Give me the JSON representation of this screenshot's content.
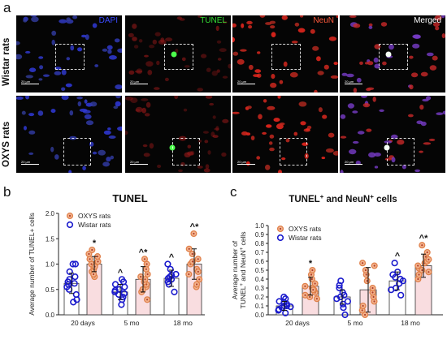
{
  "panel_letters": {
    "a": "a",
    "b": "b",
    "c": "c"
  },
  "rows": [
    {
      "label": "Wistar rats"
    },
    {
      "label": "OXYS rats"
    }
  ],
  "channels": [
    {
      "name": "DAPI",
      "color": "#3b4bff"
    },
    {
      "name": "TUNEL",
      "color": "#35e035"
    },
    {
      "name": "NeuN",
      "color": "#ff5a3c"
    },
    {
      "name": "Merged",
      "color": "#ffffff"
    }
  ],
  "scale_bar_label": "20 µm",
  "colors": {
    "wistar": "#1a1acc",
    "oxys_point": "#e0804a",
    "oxys_bar_fill": "#f9dde0",
    "axis": "#222222"
  },
  "chart_data": [
    {
      "type": "bar",
      "title": "TUNEL",
      "ylabel": "Average number of TUNEL+ cells",
      "ylim": [
        0,
        2.0
      ],
      "yticks": [
        "0.0",
        "0.5",
        "1.0",
        "1.5",
        "2.0"
      ],
      "categories": [
        "20 days",
        "5 mo",
        "18 mo"
      ],
      "legend": [
        "OXYS rats",
        "Wistar rats"
      ],
      "series": [
        {
          "name": "Wistar rats",
          "values": [
            0.62,
            0.45,
            0.72
          ],
          "err": [
            0.2,
            0.15,
            0.16
          ],
          "points": [
            [
              0.25,
              0.4,
              0.5,
              0.55,
              0.6,
              0.62,
              0.65,
              0.7,
              0.75,
              0.85,
              1.0,
              1.0,
              0.3
            ],
            [
              0.2,
              0.3,
              0.35,
              0.4,
              0.42,
              0.45,
              0.48,
              0.5,
              0.55,
              0.6,
              0.65,
              0.7
            ],
            [
              0.45,
              0.6,
              0.65,
              0.7,
              0.72,
              0.75,
              0.78,
              0.8,
              0.9,
              1.0
            ]
          ]
        },
        {
          "name": "OXYS rats",
          "values": [
            1.0,
            0.7,
            1.0
          ],
          "err": [
            0.15,
            0.25,
            0.3
          ],
          "points": [
            [
              0.75,
              0.85,
              0.9,
              0.95,
              1.0,
              1.0,
              1.05,
              1.1,
              1.15,
              1.2,
              1.28,
              0.8,
              0.95
            ],
            [
              0.3,
              0.45,
              0.55,
              0.6,
              0.65,
              0.7,
              0.75,
              0.8,
              0.9,
              1.0,
              1.1,
              0.5
            ],
            [
              0.55,
              0.6,
              0.7,
              0.8,
              0.9,
              1.0,
              1.05,
              1.1,
              1.2,
              1.3,
              1.6,
              0.85
            ]
          ]
        }
      ],
      "annotations": [
        {
          "category": "20 days",
          "series": "OXYS rats",
          "text": "*"
        },
        {
          "category": "5 mo",
          "series": "Wistar rats",
          "text": "^"
        },
        {
          "category": "5 mo",
          "series": "OXYS rats",
          "text": "^*"
        },
        {
          "category": "18 mo",
          "series": "Wistar rats",
          "text": "^"
        },
        {
          "category": "18 mo",
          "series": "OXYS rats",
          "text": "^*"
        }
      ]
    },
    {
      "type": "bar",
      "title": "TUNEL",
      "title_sup": "+",
      "title_mid": " and NeuN",
      "title_sup2": "+",
      "title_end": " cells",
      "ylabel_line1": "Average number of",
      "ylabel_line2": "TUNEL",
      "ylabel_sup": "+",
      "ylabel_mid": " and NeuN",
      "ylabel_sup2": "+",
      "ylabel_end": " cells",
      "ylim": [
        0,
        1.0
      ],
      "yticks": [
        "0.0",
        "0.1",
        "0.2",
        "0.3",
        "0.4",
        "0.5",
        "0.6",
        "0.7",
        "0.8",
        "0.9",
        "1.0"
      ],
      "categories": [
        "20 days",
        "5 mo",
        "18 mo"
      ],
      "legend": [
        "OXYS rats",
        "Wistar rats"
      ],
      "series": [
        {
          "name": "Wistar rats",
          "values": [
            0.1,
            0.2,
            0.38
          ],
          "err": [
            0.05,
            0.08,
            0.1
          ],
          "points": [
            [
              0.02,
              0.05,
              0.06,
              0.08,
              0.09,
              0.1,
              0.1,
              0.12,
              0.14,
              0.15,
              0.18,
              0.2
            ],
            [
              0.08,
              0.12,
              0.15,
              0.18,
              0.2,
              0.22,
              0.25,
              0.3,
              0.33,
              0.38,
              0.0
            ],
            [
              0.22,
              0.28,
              0.3,
              0.35,
              0.38,
              0.4,
              0.42,
              0.45,
              0.48,
              0.58
            ]
          ]
        },
        {
          "name": "OXYS rats",
          "values": [
            0.32,
            0.28,
            0.55
          ],
          "err": [
            0.1,
            0.25,
            0.13
          ],
          "points": [
            [
              0.18,
              0.22,
              0.25,
              0.28,
              0.3,
              0.32,
              0.35,
              0.4,
              0.45,
              0.5,
              0.2,
              0.28
            ],
            [
              0.0,
              0.05,
              0.1,
              0.15,
              0.2,
              0.25,
              0.3,
              0.38,
              0.45,
              0.5,
              0.55,
              0.58
            ],
            [
              0.4,
              0.45,
              0.48,
              0.52,
              0.55,
              0.58,
              0.6,
              0.65,
              0.7,
              0.78,
              0.5,
              0.62
            ]
          ]
        }
      ],
      "annotations": [
        {
          "category": "20 days",
          "series": "OXYS rats",
          "text": "*"
        },
        {
          "category": "18 mo",
          "series": "Wistar rats",
          "text": "^"
        },
        {
          "category": "18 mo",
          "series": "OXYS rats",
          "text": "^*"
        }
      ]
    }
  ]
}
